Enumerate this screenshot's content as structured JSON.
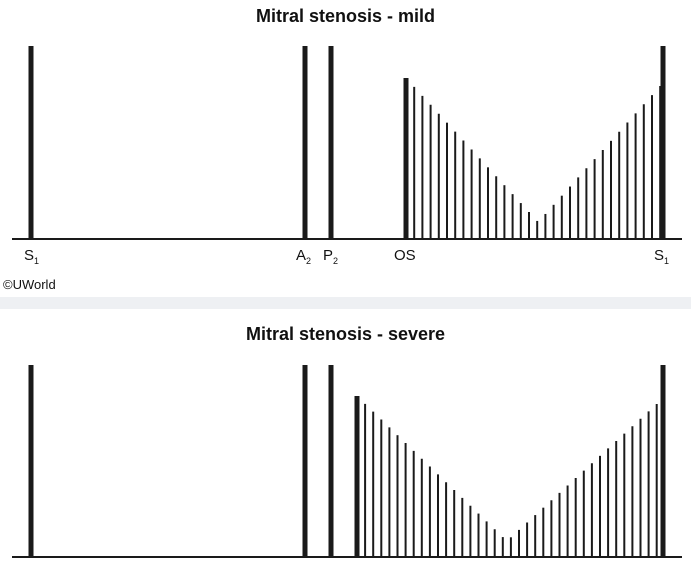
{
  "copyright": "©UWorld",
  "diagrams": [
    {
      "id": "mild",
      "title": "Mitral stenosis - mild",
      "labels": [
        {
          "main": "S",
          "sub": "1"
        },
        {
          "main": "A",
          "sub": "2"
        },
        {
          "main": "P",
          "sub": "2"
        },
        {
          "main": "OS",
          "sub": ""
        },
        {
          "main": "S",
          "sub": "1"
        }
      ]
    },
    {
      "id": "severe",
      "title": "Mitral stenosis - severe",
      "labels": []
    }
  ],
  "colors": {
    "ink": "#1a1a1a",
    "separator": "#eef0f3"
  }
}
